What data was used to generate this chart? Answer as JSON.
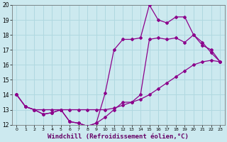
{
  "background_color": "#cce9ef",
  "line_color": "#8b008b",
  "grid_color": "#b0d8e0",
  "xlabel": "Windchill (Refroidissement éolien,°C)",
  "xlabel_fontsize": 6.5,
  "tick_fontsize": 5.5,
  "xlim": [
    -0.5,
    23.5
  ],
  "ylim": [
    12,
    20
  ],
  "yticks": [
    12,
    13,
    14,
    15,
    16,
    17,
    18,
    19,
    20
  ],
  "xticks": [
    0,
    1,
    2,
    3,
    4,
    5,
    6,
    7,
    8,
    9,
    10,
    11,
    12,
    13,
    14,
    15,
    16,
    17,
    18,
    19,
    20,
    21,
    22,
    23
  ],
  "curve_bottom_x": [
    0,
    1,
    2,
    3,
    4,
    5,
    6,
    7,
    8,
    9,
    10,
    11,
    12,
    13,
    14,
    15,
    16,
    17,
    18,
    19,
    20,
    21,
    22,
    23
  ],
  "curve_bottom_y": [
    14,
    13.2,
    13.0,
    13.0,
    13.0,
    13.0,
    13.0,
    13.0,
    13.0,
    13.0,
    13.0,
    13.1,
    13.3,
    13.5,
    13.7,
    14.0,
    14.4,
    14.8,
    15.2,
    15.6,
    16.0,
    16.2,
    16.3,
    16.2
  ],
  "curve_middle_x": [
    0,
    1,
    2,
    3,
    4,
    5,
    6,
    7,
    8,
    9,
    10,
    11,
    12,
    13,
    14,
    15,
    16,
    17,
    18,
    19,
    20,
    21,
    22,
    23
  ],
  "curve_middle_y": [
    14,
    13.2,
    13.0,
    12.7,
    12.8,
    13.0,
    12.2,
    12.1,
    11.9,
    12.1,
    12.5,
    13.0,
    13.5,
    13.5,
    14.0,
    17.7,
    17.8,
    17.7,
    17.8,
    17.5,
    18.0,
    17.3,
    17.0,
    16.2
  ],
  "curve_top_x": [
    0,
    1,
    2,
    3,
    4,
    5,
    6,
    7,
    8,
    9,
    10,
    11,
    12,
    13,
    14,
    15,
    16,
    17,
    18,
    19,
    20,
    21,
    22,
    23
  ],
  "curve_top_y": [
    14,
    13.2,
    13.0,
    12.7,
    12.8,
    13.0,
    12.2,
    12.1,
    11.9,
    12.1,
    14.1,
    17.0,
    17.7,
    17.7,
    17.8,
    20.0,
    19.0,
    18.8,
    19.2,
    19.2,
    18.0,
    17.5,
    16.8,
    16.2
  ]
}
